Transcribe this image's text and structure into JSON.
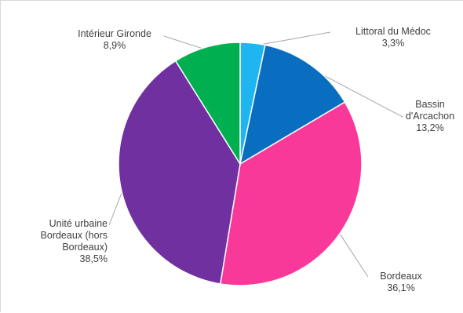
{
  "chart_data": {
    "type": "pie",
    "title": "",
    "start_angle_deg": 0,
    "direction": "clockwise",
    "slices": [
      {
        "label": "Littoral du Médoc",
        "label_lines": [
          "Littoral du Médoc"
        ],
        "value_text": "3,3%",
        "value": 3.3,
        "color": "#1fb5f0"
      },
      {
        "label": "Bassin d'Arcachon",
        "label_lines": [
          "Bassin",
          "d'Arcachon"
        ],
        "value_text": "13,2%",
        "value": 13.2,
        "color": "#0a6ec0"
      },
      {
        "label": "Bordeaux",
        "label_lines": [
          "Bordeaux"
        ],
        "value_text": "36,1%",
        "value": 36.1,
        "color": "#f9399a"
      },
      {
        "label": "Unité urbaine Bordeaux (hors Bordeaux)",
        "label_lines": [
          "Unité urbaine",
          "Bordeaux (hors",
          "Bordeaux)"
        ],
        "value_text": "38,5%",
        "value": 38.5,
        "color": "#7030a0"
      },
      {
        "label": "Intérieur Gironde",
        "label_lines": [
          "Intérieur Gironde"
        ],
        "value_text": "8,9%",
        "value": 8.9,
        "color": "#00b050"
      }
    ]
  }
}
